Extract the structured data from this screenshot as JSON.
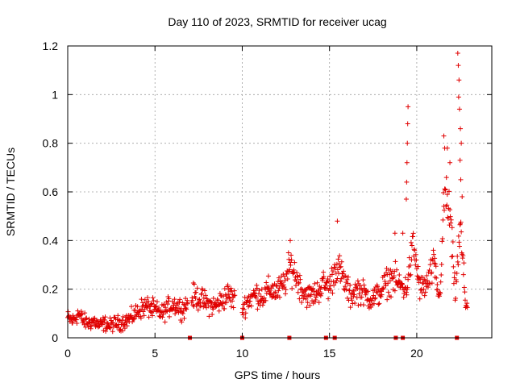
{
  "chart_data": {
    "type": "scatter",
    "title": "Day 110 of 2023, SRMTID for receiver ucag",
    "xlabel": "GPS time / hours",
    "ylabel": "SRMTID / TECUs",
    "xlim": [
      0,
      24.3
    ],
    "ylim": [
      0,
      1.2
    ],
    "xticks": [
      0,
      5,
      10,
      15,
      20
    ],
    "xtick_labels": [
      "0",
      "5",
      "10",
      "15",
      "20"
    ],
    "yticks": [
      0,
      0.2,
      0.4,
      0.6,
      0.8,
      1.0,
      1.2
    ],
    "ytick_labels": [
      "0",
      "0.2",
      "0.4",
      "0.6",
      "0.8",
      "1",
      "1.2"
    ],
    "grid": true,
    "marker": "plus",
    "color": "#e00000",
    "profile": [
      [
        0.0,
        0.08
      ],
      [
        0.3,
        0.07
      ],
      [
        0.6,
        0.1
      ],
      [
        0.9,
        0.07
      ],
      [
        1.2,
        0.06
      ],
      [
        1.5,
        0.07
      ],
      [
        1.8,
        0.05
      ],
      [
        2.1,
        0.06
      ],
      [
        2.4,
        0.05
      ],
      [
        2.7,
        0.06
      ],
      [
        3.0,
        0.06
      ],
      [
        3.3,
        0.07
      ],
      [
        3.6,
        0.08
      ],
      [
        3.9,
        0.1
      ],
      [
        4.2,
        0.12
      ],
      [
        4.5,
        0.13
      ],
      [
        4.8,
        0.12
      ],
      [
        5.1,
        0.11
      ],
      [
        5.4,
        0.1
      ],
      [
        5.7,
        0.12
      ],
      [
        6.0,
        0.14
      ],
      [
        6.3,
        0.13
      ],
      [
        6.6,
        0.12
      ],
      [
        7.2,
        0.17
      ],
      [
        7.6,
        0.16
      ],
      [
        8.0,
        0.14
      ],
      [
        8.4,
        0.13
      ],
      [
        8.8,
        0.15
      ],
      [
        9.2,
        0.18
      ],
      [
        10.0,
        0.12
      ],
      [
        10.4,
        0.16
      ],
      [
        10.8,
        0.18
      ],
      [
        11.2,
        0.17
      ],
      [
        11.6,
        0.2
      ],
      [
        12.0,
        0.19
      ],
      [
        12.4,
        0.22
      ],
      [
        12.8,
        0.3
      ],
      [
        13.1,
        0.25
      ],
      [
        13.4,
        0.2
      ],
      [
        13.8,
        0.17
      ],
      [
        14.2,
        0.18
      ],
      [
        14.6,
        0.22
      ],
      [
        15.0,
        0.21
      ],
      [
        15.4,
        0.3
      ],
      [
        15.8,
        0.24
      ],
      [
        16.2,
        0.17
      ],
      [
        16.6,
        0.2
      ],
      [
        17.0,
        0.18
      ],
      [
        17.4,
        0.16
      ],
      [
        17.8,
        0.18
      ],
      [
        18.2,
        0.22
      ],
      [
        18.6,
        0.25
      ],
      [
        19.0,
        0.22
      ],
      [
        19.4,
        0.2
      ],
      [
        19.8,
        0.38
      ],
      [
        20.2,
        0.2
      ],
      [
        20.6,
        0.22
      ],
      [
        21.0,
        0.3
      ],
      [
        21.3,
        0.15
      ],
      [
        21.6,
        0.6
      ],
      [
        21.9,
        0.5
      ],
      [
        22.2,
        0.18
      ],
      [
        22.5,
        0.45
      ],
      [
        22.8,
        0.14
      ]
    ],
    "spikes": [
      [
        12.75,
        0.4
      ],
      [
        15.45,
        0.48
      ],
      [
        18.75,
        0.43
      ],
      [
        19.2,
        0.43
      ],
      [
        19.5,
        0.95
      ],
      [
        19.48,
        0.88
      ],
      [
        19.46,
        0.8
      ],
      [
        19.44,
        0.72
      ],
      [
        19.42,
        0.64
      ],
      [
        19.4,
        0.57
      ],
      [
        21.55,
        0.83
      ],
      [
        21.6,
        0.78
      ],
      [
        21.75,
        0.78
      ],
      [
        21.9,
        0.72
      ],
      [
        22.35,
        1.17
      ],
      [
        22.38,
        1.12
      ],
      [
        22.42,
        1.06
      ],
      [
        22.4,
        0.99
      ],
      [
        22.45,
        0.94
      ],
      [
        22.5,
        0.86
      ],
      [
        22.55,
        0.8
      ],
      [
        22.48,
        0.73
      ],
      [
        22.52,
        0.65
      ],
      [
        22.6,
        0.58
      ]
    ],
    "zero_markers": [
      7.0,
      10.0,
      12.7,
      14.8,
      15.3,
      18.8,
      19.2,
      22.3
    ]
  }
}
